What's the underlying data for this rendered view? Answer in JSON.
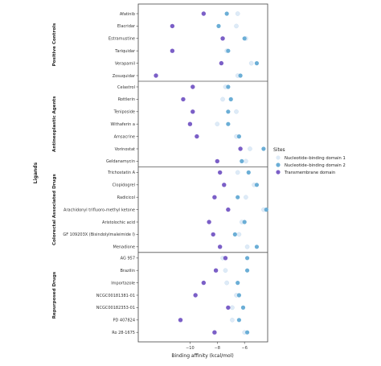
{
  "chart_data": {
    "type": "scatter",
    "xlabel": "Binding affinity (kcal/mol)",
    "ylabel": "Ligands",
    "xlim": [
      -13.8,
      -4.3
    ],
    "x_ticks": [
      -10,
      -8,
      -6
    ],
    "x_tick_labels": [
      "−10",
      "−8",
      "−6"
    ],
    "legend": {
      "title": "Sites",
      "placement": "right",
      "entries": [
        {
          "name": "Nucleotide–binding domain 1",
          "color": "#deebf7"
        },
        {
          "name": "Nucleotide–binding domain 2",
          "color": "#6baed6"
        },
        {
          "name": "Transmembrane domain",
          "color": "#7b5fc7"
        }
      ]
    },
    "groups": [
      {
        "name": "Positive Controls",
        "ligands": [
          {
            "name": "Afatinib",
            "nbd1": -6.5,
            "nbd2": -7.3,
            "tmd": -9.0
          },
          {
            "name": "Elacridar",
            "nbd1": -6.6,
            "nbd2": -7.9,
            "tmd": -11.3
          },
          {
            "name": "Estramustine",
            "nbd1": -5.9,
            "nbd2": -6.0,
            "tmd": -7.6
          },
          {
            "name": "Tariquidar",
            "nbd1": -7.3,
            "nbd2": -7.2,
            "tmd": -11.3
          },
          {
            "name": "Verapamil",
            "nbd1": -5.5,
            "nbd2": -5.1,
            "tmd": -7.7
          },
          {
            "name": "Zosuquidar",
            "nbd1": -6.5,
            "nbd2": -6.3,
            "tmd": -12.5
          }
        ]
      },
      {
        "name": "Antineoplastic Agents",
        "ligands": [
          {
            "name": "Celastrol",
            "nbd1": -7.4,
            "nbd2": -7.2,
            "tmd": -9.8
          },
          {
            "name": "Rottlerin",
            "nbd1": -7.6,
            "nbd2": -7.0,
            "tmd": -10.5
          },
          {
            "name": "Teniposide",
            "nbd1": -6.6,
            "nbd2": -7.2,
            "tmd": -9.8
          },
          {
            "name": "Withaferin a",
            "nbd1": -8.0,
            "nbd2": -7.2,
            "tmd": -10.0
          },
          {
            "name": "Amsacrine",
            "nbd1": -6.6,
            "nbd2": -6.4,
            "tmd": -9.5
          },
          {
            "name": "Vorinostat",
            "nbd1": -5.6,
            "nbd2": -4.6,
            "tmd": -6.3
          },
          {
            "name": "Geldanamycin",
            "nbd1": -5.9,
            "nbd2": -6.2,
            "tmd": -8.0
          }
        ]
      },
      {
        "name": "Colorectal Associated Drugs",
        "ligands": [
          {
            "name": "Trichostatin A",
            "nbd1": -6.5,
            "nbd2": -5.7,
            "tmd": -7.8
          },
          {
            "name": "Clopidogrel",
            "nbd1": -5.3,
            "nbd2": -5.1,
            "tmd": -7.5
          },
          {
            "name": "Radicicol",
            "nbd1": -5.9,
            "nbd2": -6.5,
            "tmd": -8.2
          },
          {
            "name": "Arachidonyl trifluoro-methyl ketone",
            "nbd1": -4.6,
            "nbd2": -4.4,
            "tmd": -7.2
          },
          {
            "name": "Aristolochic acid",
            "nbd1": -6.2,
            "nbd2": -6.0,
            "tmd": -8.6
          },
          {
            "name": "GF 109203X (Bisindolylmaleimide I)",
            "nbd1": -6.4,
            "nbd2": -6.7,
            "tmd": -8.3
          },
          {
            "name": "Menadione",
            "nbd1": -5.8,
            "nbd2": -5.1,
            "tmd": -7.8
          }
        ]
      },
      {
        "name": "Repurposed Drugs",
        "ligands": [
          {
            "name": "AG 957",
            "nbd1": -7.6,
            "nbd2": -5.8,
            "tmd": -7.4
          },
          {
            "name": "Brazilin",
            "nbd1": -7.4,
            "nbd2": -5.8,
            "tmd": -8.1
          },
          {
            "name": "Importazole",
            "nbd1": -7.3,
            "nbd2": -6.5,
            "tmd": -9.0
          },
          {
            "name": "NCGC00181381-01",
            "nbd1": -6.6,
            "nbd2": -6.4,
            "tmd": -9.6
          },
          {
            "name": "NCGC00182353-01",
            "nbd1": -6.9,
            "nbd2": -6.1,
            "tmd": -7.2
          },
          {
            "name": "PD 407824",
            "nbd1": -6.9,
            "nbd2": -6.4,
            "tmd": -10.7
          },
          {
            "name": "Ro 28-1675",
            "nbd1": -6.0,
            "nbd2": -5.8,
            "tmd": -8.2
          }
        ]
      }
    ]
  }
}
